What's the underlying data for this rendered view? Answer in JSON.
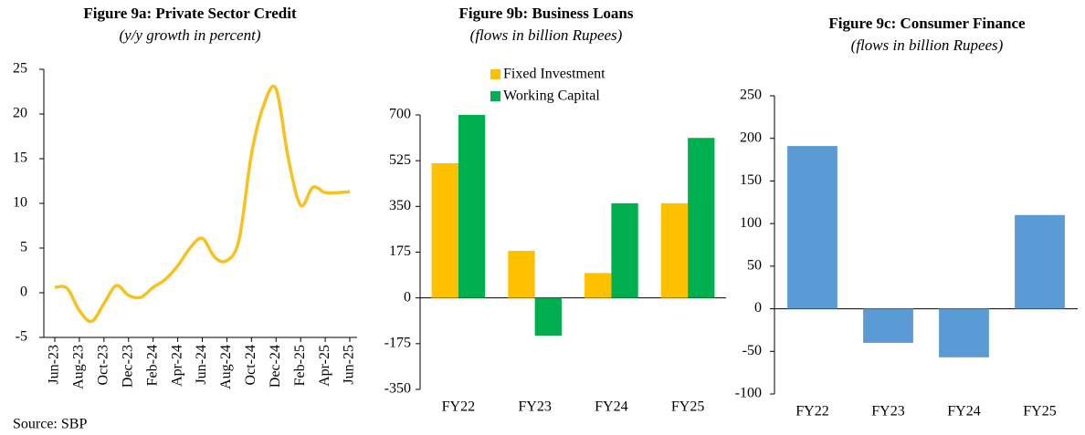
{
  "chart_data": [
    {
      "type": "line",
      "title": "Figure 9a: Private Sector Credit",
      "subtitle": "(y/y growth in percent)",
      "categories": [
        "Jun-23",
        null,
        "Aug-23",
        null,
        "Oct-23",
        null,
        "Dec-23",
        null,
        "Feb-24",
        null,
        "Apr-24",
        null,
        "Jun-24",
        null,
        "Aug-24",
        null,
        "Oct-24",
        null,
        "Dec-24",
        null,
        "Feb-25",
        null,
        "Apr-25",
        null,
        "Jun-25"
      ],
      "values": [
        0.6,
        0.5,
        -2.0,
        -3.2,
        -1.2,
        0.8,
        -0.3,
        -0.5,
        0.6,
        1.5,
        3.0,
        5.0,
        6.1,
        4.0,
        3.6,
        6.0,
        15.5,
        21.0,
        22.8,
        15.0,
        9.8,
        11.8,
        11.2,
        11.2,
        11.3
      ],
      "color": "#f7c21e",
      "ylim": [
        -5,
        25
      ],
      "yticks": [
        -5,
        0,
        5,
        10,
        15,
        20,
        25
      ]
    },
    {
      "type": "bar",
      "title": "Figure 9b: Business Loans",
      "subtitle": "(flows in billion Rupees)",
      "categories": [
        "FY22",
        "FY23",
        "FY24",
        "FY25"
      ],
      "series": [
        {
          "name": "Fixed Investment",
          "color": "#ffc000",
          "values": [
            515,
            180,
            95,
            362
          ]
        },
        {
          "name": "Working Capital",
          "color": "#00b050",
          "values": [
            700,
            -145,
            362,
            612
          ]
        }
      ],
      "ylim": [
        -350,
        700
      ],
      "yticks": [
        -350,
        -175,
        0,
        175,
        350,
        525,
        700
      ]
    },
    {
      "type": "bar",
      "title": "Figure 9c: Consumer Finance",
      "subtitle": "(flows in billion Rupees)",
      "categories": [
        "FY22",
        "FY23",
        "FY24",
        "FY25"
      ],
      "values": [
        191,
        -40,
        -57,
        110
      ],
      "color": "#5b9bd5",
      "ylim": [
        -100,
        250
      ],
      "yticks": [
        -100,
        -50,
        0,
        50,
        100,
        150,
        200,
        250
      ]
    }
  ],
  "source": "Source: SBP"
}
